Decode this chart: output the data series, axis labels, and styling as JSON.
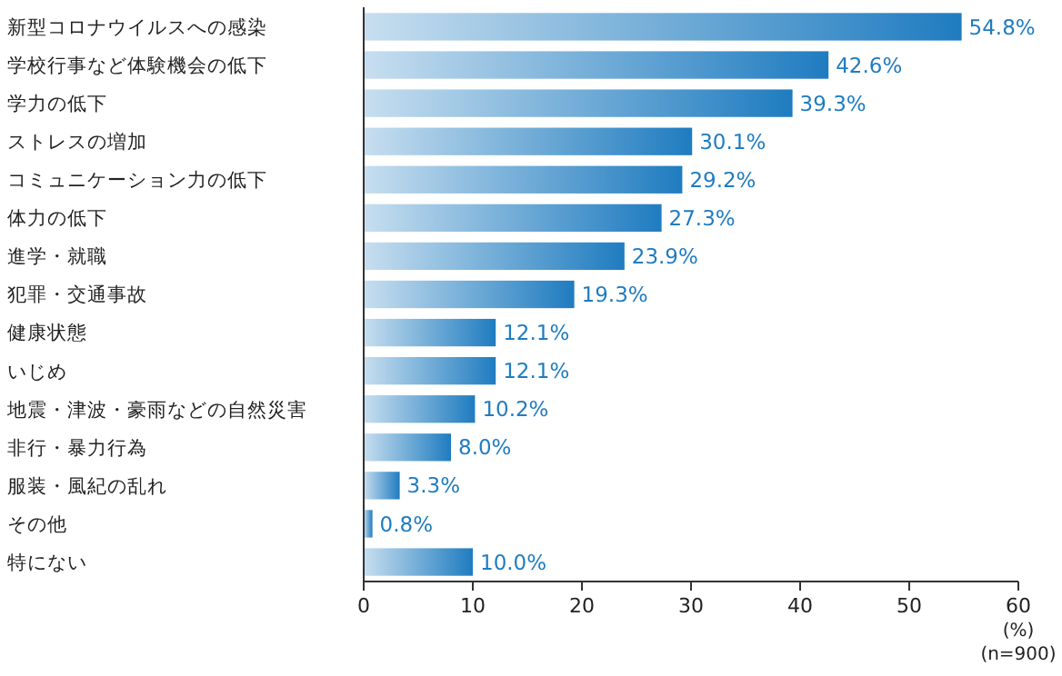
{
  "chart_data": {
    "type": "bar",
    "orientation": "horizontal",
    "xlabel": "(%)",
    "annotations": [
      "(n=900)"
    ],
    "categories": [
      "新型コロナウイルスへの感染",
      "学校行事など体験機会の低下",
      "学力の低下",
      "ストレスの増加",
      "コミュニケーション力の低下",
      "体力の低下",
      "進学・就職",
      "犯罪・交通事故",
      "健康状態",
      "いじめ",
      "地震・津波・豪雨などの自然災害",
      "非行・暴力行為",
      "服装・風紀の乱れ",
      "その他",
      "特にない"
    ],
    "values": [
      54.8,
      42.6,
      39.3,
      30.1,
      29.2,
      27.3,
      23.9,
      19.3,
      12.1,
      12.1,
      10.2,
      8.0,
      3.3,
      0.8,
      10.0
    ],
    "value_labels": [
      "54.8%",
      "42.6%",
      "39.3%",
      "30.1%",
      "29.2%",
      "27.3%",
      "23.9%",
      "19.3%",
      "12.1%",
      "12.1%",
      "10.2%",
      "8.0%",
      "3.3%",
      "0.8%",
      "10.0%"
    ],
    "color": "#1f7cc0",
    "xlim": [
      0,
      60
    ],
    "xticks": [
      0,
      10,
      20,
      30,
      40,
      50,
      60
    ],
    "grid": false
  }
}
